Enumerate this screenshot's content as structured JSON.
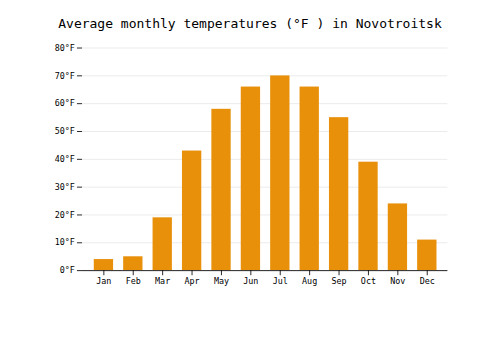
{
  "chart_data": {
    "type": "bar",
    "title": "Average monthly temperatures (°F ) in Novotroitsk",
    "categories": [
      "Jan",
      "Feb",
      "Mar",
      "Apr",
      "May",
      "Jun",
      "Jul",
      "Aug",
      "Sep",
      "Oct",
      "Nov",
      "Dec"
    ],
    "values": [
      4,
      5,
      19,
      43,
      58,
      66,
      70,
      66,
      55,
      39,
      24,
      11
    ],
    "color": "#E8900A",
    "ylim": [
      0,
      80
    ],
    "yticks": [
      {
        "value": 0,
        "label": "0°F"
      },
      {
        "value": 10,
        "label": "10°F"
      },
      {
        "value": 20,
        "label": "20°F"
      },
      {
        "value": 30,
        "label": "30°F"
      },
      {
        "value": 40,
        "label": "40°F"
      },
      {
        "value": 50,
        "label": "50°F"
      },
      {
        "value": 60,
        "label": "60°F"
      },
      {
        "value": 70,
        "label": "70°F"
      },
      {
        "value": 80,
        "label": "80°F"
      }
    ],
    "grid": true
  }
}
